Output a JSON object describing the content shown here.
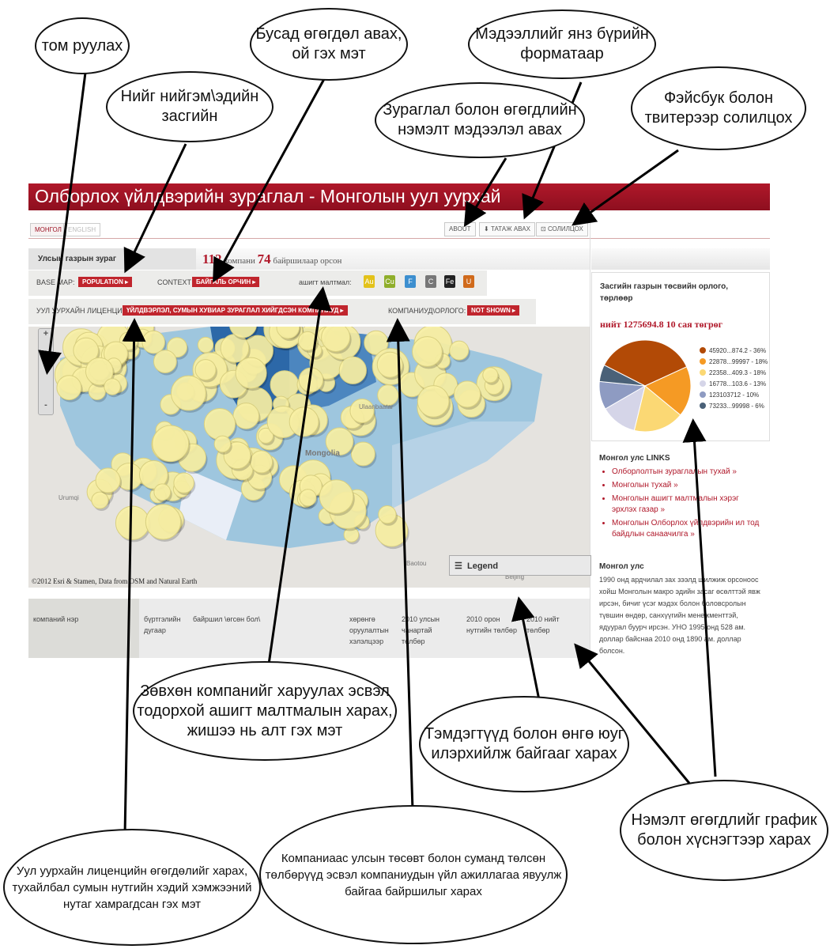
{
  "app": {
    "title": "Олборлох үйлдвэрийн зураглал - Монголын уул уурхай",
    "lang_active": "МОНГОЛ",
    "lang_other": "ENGLISH",
    "btn_about": "ABOUT",
    "btn_download": "ТАТАЖ АВАХ",
    "btn_share": "СОЛИЛЦОХ",
    "map_tab": "Улсын газрын зураг",
    "count_companies": "112",
    "companies_text": "компани",
    "count_locations": "74",
    "locations_text": "байршилаар орсон",
    "base_map_label": "BASE MAP:",
    "base_map_value": "POPULATION",
    "context_label": "CONTEXT",
    "context_value": "БАЙГАЛЬ ОРЧИН",
    "minerals_label": "ашигт малтмал:",
    "license_label": "УУЛ УУРХАЙН ЛИЦЕНЦИ:",
    "license_value": "ҮЙЛДВЭРЛЭЛ, СУМЫН ХУВИАР ЗУРАГЛАЛ ХИЙГДСЭН КОМПАНИУД",
    "revenue_label": "КОМПАНИУД\\ОРЛОГО:",
    "revenue_value": "NOT SHOWN",
    "zoom_plus": "+",
    "zoom_minus": "-",
    "map_labels": {
      "ulaanbaatar": "Ulaanbaatar",
      "mongolia": "Mongolia",
      "urumqi": "Urumqi",
      "baotou": "Baotou",
      "beijing": "Beijing"
    },
    "credit": "©2012 Esri & Stamen, Data from OSM and Natural Earth",
    "legend": "Legend",
    "table_headers": [
      "компаний нэр",
      "бүртгэлийн дугаар",
      "байршил \\өгсөн бол\\",
      "хөрөнгө оруулалтын хэлэлцээр",
      "2010 улсын чанартай төлбөр",
      "2010 орон нутгийн төлбөр",
      "2010 нийт төлбөр"
    ],
    "side_title": "Засгийн газрын төсвийн орлого, төрлөөр",
    "side_total": "нийт 1275694.8 10 сая төгрөг",
    "pie_legend": [
      "45920...874.2 - 36%",
      "22878...99997 - 18%",
      "22358...409.3 - 18%",
      "16778...103.6 - 13%",
      "123103712 - 10%",
      "73233...99998 - 6%"
    ],
    "links_title": "Монгол улс LINKS",
    "links": [
      "Олборлолтын зураглалын тухай »",
      "Монголын тухай »",
      "Монголын ашигт малтмалын хэрэг эрхлэх газар »",
      "Монголын Олборлох үйлдвэрийн ил тод байдлын санаачилга »"
    ],
    "about_title": "Монгол улс",
    "about_text": "1990 онд ардчилал зах зээлд шилжиж орсоноос хойш Монголын макро эдийн засаг өсөлттэй явж ирсэн, бичиг үсэг мэдэх болон боловсролын түвшин өндөр, санхүүгийн менежменттэй, ядуурал буурч ирсэн. УНО 1995 онд 528 ам. доллар байснаа 2010 онд 1890 ам. доллар болсон."
  },
  "pie": {
    "values": [
      36,
      18,
      18,
      13,
      10,
      6
    ],
    "colors": [
      "#b24a06",
      "#f59a24",
      "#fbd874",
      "#d5d5e8",
      "#8e9bc2",
      "#4a6178"
    ]
  },
  "annotations": {
    "zoom": "том руулах",
    "social": "Нийг нийгэм\\эдийн засгийн",
    "other_data": "Бусад өгөгдөл авах, ой гэх мэт",
    "formats": "Мэдээллийг янз бүрийн форматаар",
    "extra_info": "Зураглал болон өгөгдлийн нэмэлт мэдээлэл авах",
    "share": "Фэйсбук болон твитерээр солилцох",
    "minerals": "Зөвхөн компанийг харуулах эсвэл тодорхой ашигт малтмалын харах, жишээ нь алт гэх мэт",
    "symbols": "Тэмдэгтүүд болон өнгө юуг илэрхийлж байгааг харах",
    "charts": "Нэмэлт өгөгдлийг график болон хүснэгтээр харах",
    "license": "Уул уурхайн лиценцийн өгөгдөлийг харах, тухайлбал сумын нутгийн хэдий хэмжээний нутаг хамрагдсан гэх мэт",
    "payments": "Компаниаас улсын төсөвт болон суманд төлсөн төлбөрүүд эсвэл компаниудын үйл ажиллагаа явуулж байгаа байршилыг харах"
  }
}
